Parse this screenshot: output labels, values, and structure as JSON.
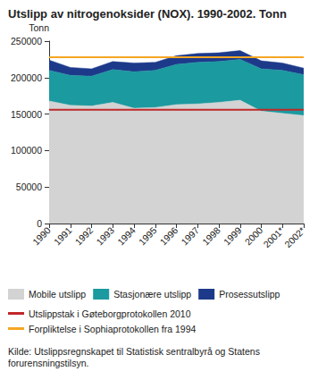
{
  "chart_data": {
    "type": "area",
    "title": "Utslipp av nitrogenoksider (NOX). 1990-2002. Tonn",
    "y_label": "Tonn",
    "source": "Kilde: Utslippsregnskapet til Statistisk sentralbyrå og Statens forurensningstilsyn.",
    "categories": [
      "1990",
      "1991",
      "1992",
      "1993",
      "1994",
      "1995",
      "1996",
      "1997",
      "1998",
      "1999",
      "2000",
      "2001*",
      "2002*"
    ],
    "stacked": true,
    "grid": false,
    "legend": "bottom",
    "ylim": [
      0,
      250000
    ],
    "yticks": [
      0,
      50000,
      100000,
      150000,
      200000,
      250000
    ],
    "series": [
      {
        "name": "Mobile utslipp",
        "type": "area",
        "color": "#d3d3d3",
        "values": [
          168000,
          162000,
          161000,
          166000,
          158000,
          159000,
          163000,
          164000,
          166000,
          169000,
          154000,
          151000,
          148000
        ]
      },
      {
        "name": "Stasjonære utslipp",
        "type": "area",
        "color": "#1b9aa0",
        "values": [
          42000,
          41000,
          41000,
          45000,
          50000,
          51000,
          55000,
          57000,
          56000,
          56000,
          58000,
          59000,
          56000
        ]
      },
      {
        "name": "Prosessutslipp",
        "type": "area",
        "color": "#1d3a8a",
        "values": [
          14000,
          11000,
          10000,
          11000,
          12000,
          11000,
          12000,
          12000,
          12000,
          12000,
          11000,
          10000,
          9000
        ]
      },
      {
        "name": "Utslippstak i Gøteborgprotokollen 2010",
        "type": "line",
        "color": "#c0282a",
        "values": [
          156000,
          156000,
          156000,
          156000,
          156000,
          156000,
          156000,
          156000,
          156000,
          156000,
          156000,
          156000,
          156000
        ]
      },
      {
        "name": "Forpliktelse i Sophiaprotokollen fra 1994",
        "type": "line",
        "color": "#f5a623",
        "values": [
          228000,
          228000,
          228000,
          228000,
          228000,
          228000,
          228000,
          228000,
          228000,
          228000,
          228000,
          228000,
          228000
        ]
      }
    ]
  }
}
